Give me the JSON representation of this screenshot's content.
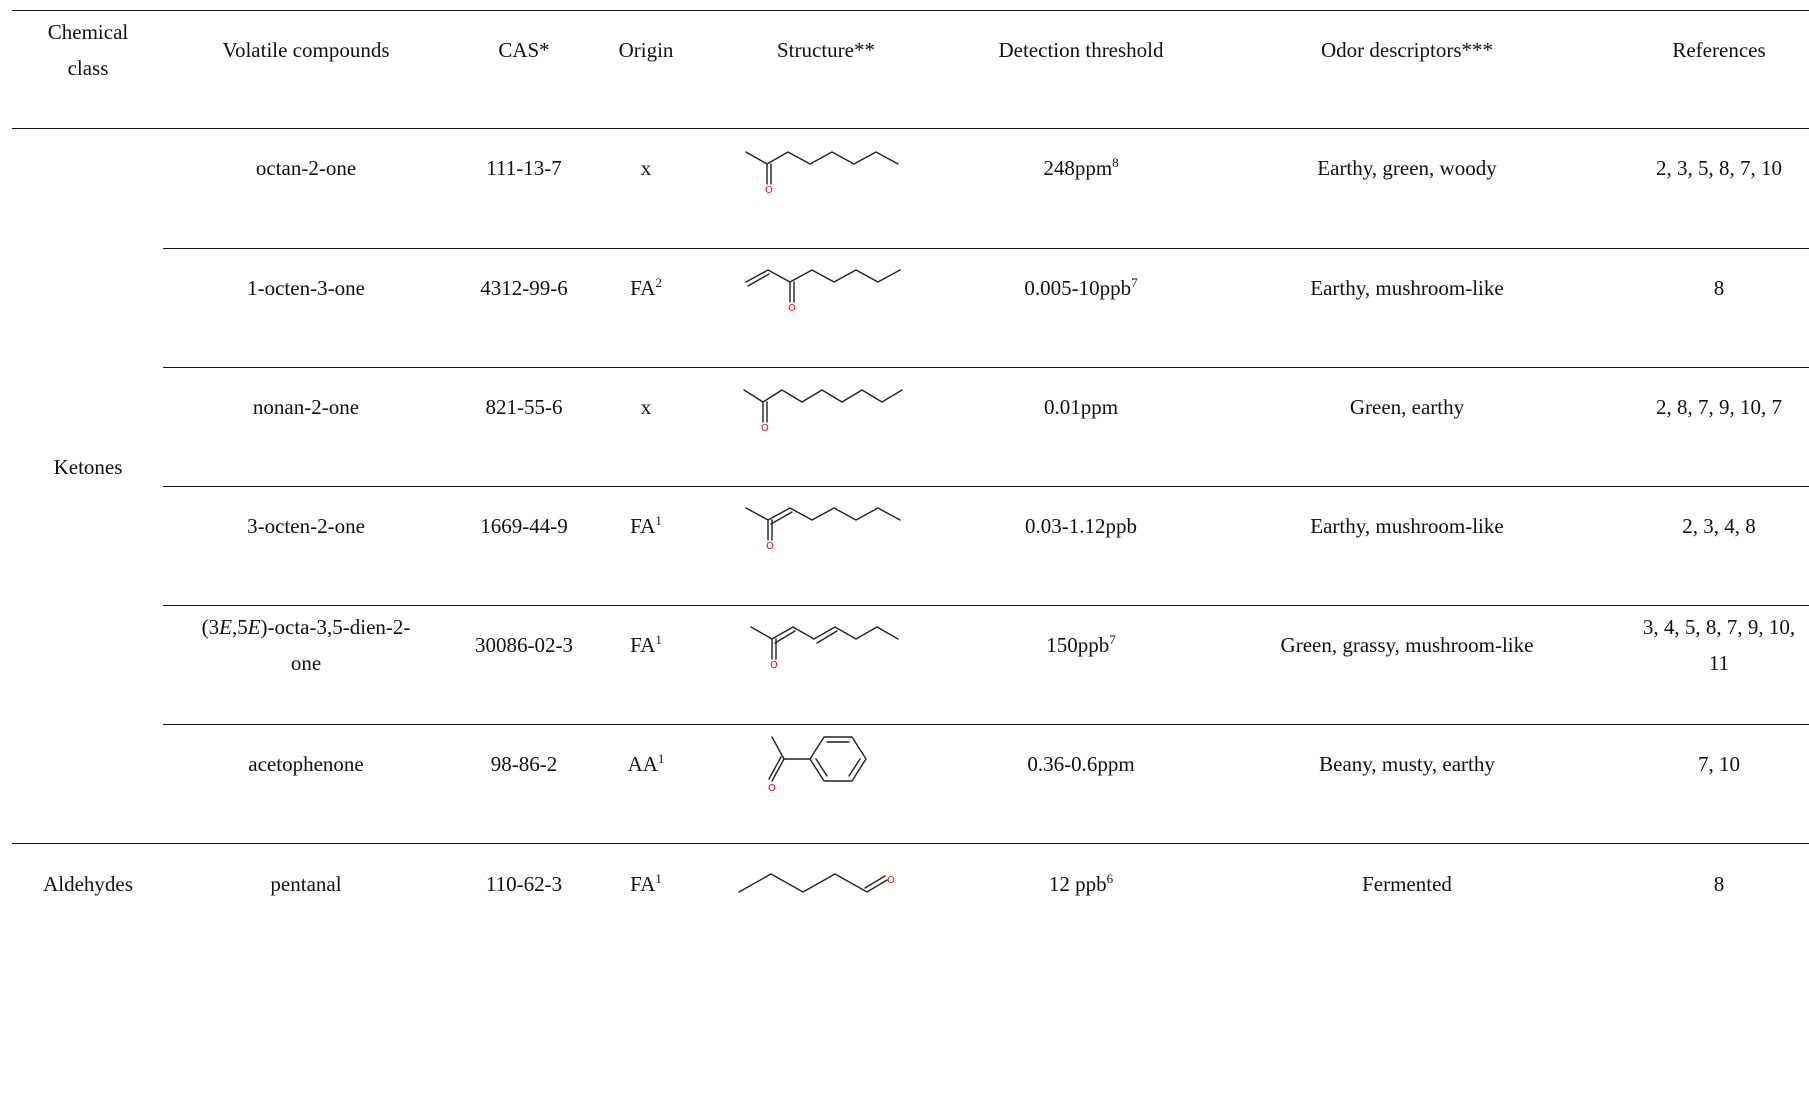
{
  "headers": {
    "chemical_class_line1": "Chemical",
    "chemical_class_line2": "class",
    "volatile_compounds": "Volatile compounds",
    "cas": "CAS*",
    "origin": "Origin",
    "structure": "Structure**",
    "detection_threshold": "Detection threshold",
    "odor_descriptors": "Odor descriptors***",
    "references": "References"
  },
  "classes": {
    "ketones": "Ketones",
    "aldehydes": "Aldehydes"
  },
  "rows": [
    {
      "compound": "octan-2-one",
      "cas": "111-13-7",
      "origin": "x",
      "origin_sup": "",
      "threshold": "248ppm",
      "threshold_sup": "8",
      "odor": "Earthy, green, woody",
      "refs": "2, 3, 5, 8, 7, 10",
      "structure_icon": "octan-2-one-structure"
    },
    {
      "compound": "1-octen-3-one",
      "cas": "4312-99-6",
      "origin": "FA",
      "origin_sup": "2",
      "threshold": "0.005-10ppb",
      "threshold_sup": "7",
      "odor": "Earthy, mushroom-like",
      "refs": "8",
      "structure_icon": "1-octen-3-one-structure"
    },
    {
      "compound": "nonan-2-one",
      "cas": "821-55-6",
      "origin": "x",
      "origin_sup": "",
      "threshold": "0.01ppm",
      "threshold_sup": "",
      "odor": "Green, earthy",
      "refs": "2, 8, 7, 9, 10, 7",
      "structure_icon": "nonan-2-one-structure"
    },
    {
      "compound": "3-octen-2-one",
      "cas": "1669-44-9",
      "origin": "FA",
      "origin_sup": "1",
      "threshold": "0.03-1.12ppb",
      "threshold_sup": "",
      "odor": "Earthy, mushroom-like",
      "refs": "2, 3, 4, 8",
      "structure_icon": "3-octen-2-one-structure"
    },
    {
      "compound_pre": "(3",
      "compound_e1": "E",
      "compound_mid": ",5",
      "compound_e2": "E",
      "compound_post": ")-octa-3,5-dien-2-",
      "compound_line2": "one",
      "cas": "30086-02-3",
      "origin": "FA",
      "origin_sup": "1",
      "threshold": "150ppb",
      "threshold_sup": "7",
      "odor": "Green, grassy, mushroom-like",
      "refs_line1": "3, 4, 5, 8, 7, 9, 10,",
      "refs_line2": "11",
      "structure_icon": "octa-3-5-dien-2-one-structure"
    },
    {
      "compound": "acetophenone",
      "cas": "98-86-2",
      "origin": "AA",
      "origin_sup": "1",
      "threshold": "0.36-0.6ppm",
      "threshold_sup": "",
      "odor": "Beany, musty, earthy",
      "refs": "7, 10",
      "structure_icon": "acetophenone-structure"
    },
    {
      "compound": "pentanal",
      "cas": "110-62-3",
      "origin": "FA",
      "origin_sup": "1",
      "threshold": "12 ppb",
      "threshold_sup": "6",
      "odor": "Fermented",
      "refs": "8",
      "structure_icon": "pentanal-structure"
    }
  ],
  "structure_atom_label": "O"
}
